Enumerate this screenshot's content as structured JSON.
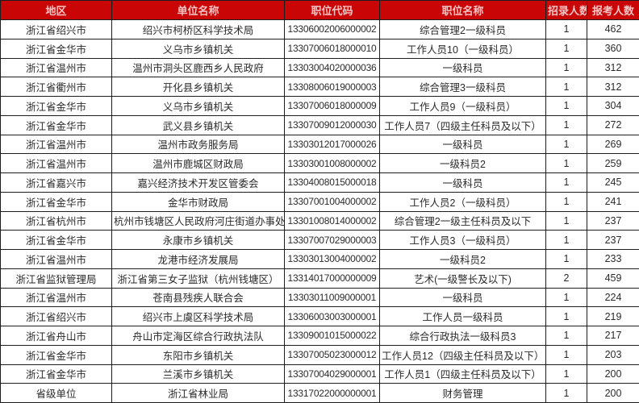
{
  "colors": {
    "header_bg": "#ca0505",
    "header_text": "#f6c4c4",
    "border": "#1d1d1d",
    "body_text": "#2b2b2b",
    "row_bg": "#ffffff"
  },
  "table": {
    "headers": [
      "地区",
      "单位名称",
      "职位代码",
      "职位名称",
      "招录人数",
      "报考人数"
    ],
    "rows": [
      {
        "region": "浙江省绍兴市",
        "unit": "绍兴市柯桥区科学技术局",
        "code": "13306002006000002",
        "position": "综合管理2一级科员",
        "recruit": "1",
        "applicants": "462"
      },
      {
        "region": "浙江省金华市",
        "unit": "义乌市乡镇机关",
        "code": "13307006018000010",
        "position": "工作人员10（一级科员）",
        "recruit": "1",
        "applicants": "360"
      },
      {
        "region": "浙江省温州市",
        "unit": "温州市洞头区鹿西乡人民政府",
        "code": "13303004020000036",
        "position": "一级科员",
        "recruit": "1",
        "applicants": "312"
      },
      {
        "region": "浙江省衢州市",
        "unit": "开化县乡镇机关",
        "code": "13308006019000003",
        "position": "综合管理3一级科员",
        "recruit": "1",
        "applicants": "312"
      },
      {
        "region": "浙江省金华市",
        "unit": "义乌市乡镇机关",
        "code": "13307006018000009",
        "position": "工作人员9（一级科员）",
        "recruit": "1",
        "applicants": "304"
      },
      {
        "region": "浙江省金华市",
        "unit": "武义县乡镇机关",
        "code": "13307009012000030",
        "position": "工作人员7（四级主任科员及以下）",
        "recruit": "1",
        "applicants": "272"
      },
      {
        "region": "浙江省温州市",
        "unit": "温州市政务服务局",
        "code": "13303012017000026",
        "position": "一级科员",
        "recruit": "1",
        "applicants": "269"
      },
      {
        "region": "浙江省温州市",
        "unit": "温州市鹿城区财政局",
        "code": "13303001008000002",
        "position": "一级科员2",
        "recruit": "1",
        "applicants": "259"
      },
      {
        "region": "浙江省嘉兴市",
        "unit": "嘉兴经济技术开发区管委会",
        "code": "13304008015000018",
        "position": "一级科员",
        "recruit": "1",
        "applicants": "245"
      },
      {
        "region": "浙江省金华市",
        "unit": "金华市财政局",
        "code": "13307001004000002",
        "position": "工作人员2（一级科员）",
        "recruit": "1",
        "applicants": "241"
      },
      {
        "region": "浙江省杭州市",
        "unit": "杭州市钱塘区人民政府河庄街道办事处",
        "code": "13301008014000002",
        "position": "综合管理2一级主任科员及以下",
        "recruit": "1",
        "applicants": "237"
      },
      {
        "region": "浙江省金华市",
        "unit": "永康市乡镇机关",
        "code": "13307007029000003",
        "position": "工作人员3（一级科员）",
        "recruit": "1",
        "applicants": "237"
      },
      {
        "region": "浙江省温州市",
        "unit": "龙港市经济发展局",
        "code": "13303013004000002",
        "position": "一级科员2",
        "recruit": "1",
        "applicants": "233"
      },
      {
        "region": "浙江省监狱管理局",
        "unit": "浙江省第三女子监狱（杭州钱塘区）",
        "code": "13314017000000009",
        "position": "艺术(一级警长及以下)",
        "recruit": "2",
        "applicants": "459"
      },
      {
        "region": "浙江省温州市",
        "unit": "苍南县残疾人联合会",
        "code": "13303011009000001",
        "position": "一级科员",
        "recruit": "1",
        "applicants": "224"
      },
      {
        "region": "浙江省绍兴市",
        "unit": "绍兴市上虞区科学技术局",
        "code": "13306003003000001",
        "position": "工作人员一级科员",
        "recruit": "1",
        "applicants": "219"
      },
      {
        "region": "浙江省舟山市",
        "unit": "舟山市定海区综合行政执法队",
        "code": "13309001015000022",
        "position": "综合行政执法一级科员3",
        "recruit": "1",
        "applicants": "217"
      },
      {
        "region": "浙江省金华市",
        "unit": "东阳市乡镇机关",
        "code": "13307005023000012",
        "position": "工作人员12（四级主任科员及以下）",
        "recruit": "1",
        "applicants": "203"
      },
      {
        "region": "浙江省金华市",
        "unit": "兰溪市乡镇机关",
        "code": "13307004029000001",
        "position": "工作人员1（四级主任科员及以下）",
        "recruit": "1",
        "applicants": "200"
      },
      {
        "region": "省级单位",
        "unit": "浙江省林业局",
        "code": "13317022000000001",
        "position": "财务管理",
        "recruit": "1",
        "applicants": "200"
      }
    ]
  }
}
